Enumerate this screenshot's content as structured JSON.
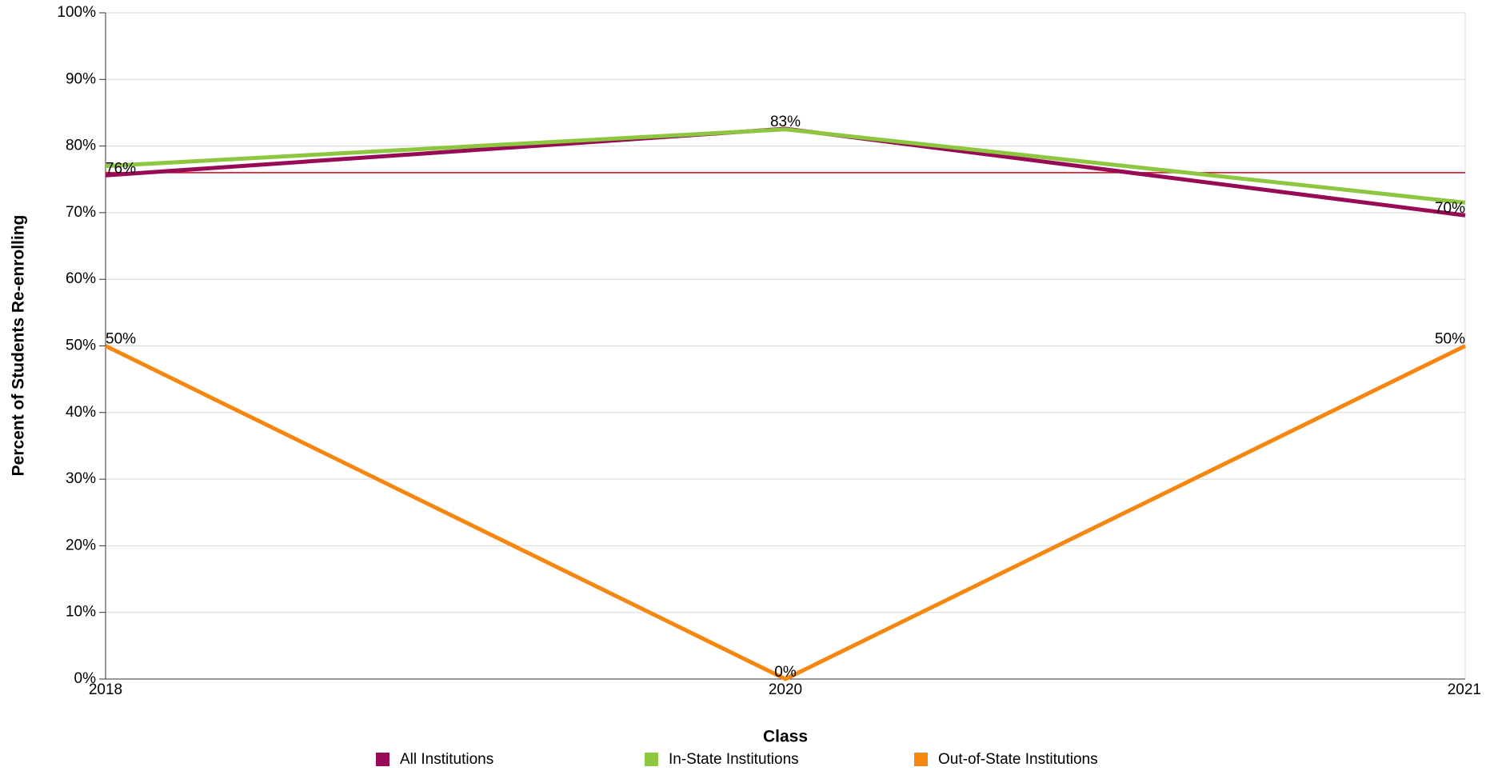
{
  "chart_data": {
    "type": "line",
    "x_label": "Class",
    "y_label": "Percent of Students Re-enrolling",
    "categories": [
      "2018",
      "2020",
      "2021"
    ],
    "series": [
      {
        "name": "All Institutions",
        "color": "#970a55",
        "values": [
          75.6,
          82.6,
          69.6
        ],
        "value_labels": [
          "76%",
          "83%",
          "70%"
        ]
      },
      {
        "name": "In-State Institutions",
        "color": "#8dc63f",
        "values": [
          77,
          82.5,
          71.5
        ]
      },
      {
        "name": "Out-of-State Institutions",
        "color": "#f7860f",
        "values": [
          50,
          0,
          50
        ],
        "value_labels": [
          "50%",
          "0%",
          "50%"
        ]
      }
    ],
    "reference_line": {
      "value": 76,
      "color": "#d0021b"
    },
    "ylim": [
      0,
      100
    ],
    "yticks": [
      {
        "value": 0,
        "label": "0%"
      },
      {
        "value": 10,
        "label": "10%"
      },
      {
        "value": 20,
        "label": "20%"
      },
      {
        "value": 30,
        "label": "30%"
      },
      {
        "value": 40,
        "label": "40%"
      },
      {
        "value": 50,
        "label": "50%"
      },
      {
        "value": 60,
        "label": "60%"
      },
      {
        "value": 70,
        "label": "70%"
      },
      {
        "value": 80,
        "label": "80%"
      },
      {
        "value": 90,
        "label": "90%"
      },
      {
        "value": 100,
        "label": "100%"
      }
    ],
    "grid": true,
    "legend": "bottom"
  }
}
